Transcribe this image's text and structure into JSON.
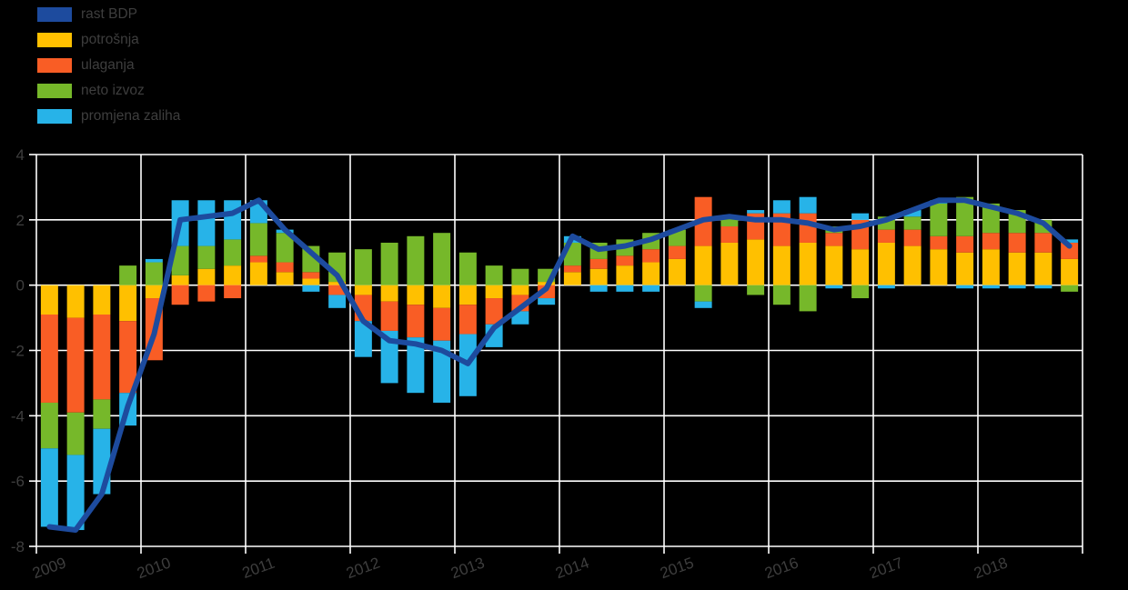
{
  "legend": {
    "items": [
      {
        "label": "rast BDP",
        "color": "#1d4b9e"
      },
      {
        "label": "potrošnja",
        "color": "#ffc000"
      },
      {
        "label": "ulaganja",
        "color": "#f95d25"
      },
      {
        "label": "neto izvoz",
        "color": "#76b82a"
      },
      {
        "label": "promjena zaliha",
        "color": "#27b3e8"
      }
    ]
  },
  "chart_data": {
    "type": "bar",
    "subtype": "stacked-contribution-bars-with-line-overlay",
    "background": "#000000",
    "grid": true,
    "gridline_color": "#ffffff",
    "label_color": "#3e3e3e",
    "legend_position": "top-left",
    "ylim": [
      -8,
      4
    ],
    "y_ticks": [
      4,
      2,
      0,
      -2,
      -4,
      -6,
      -8
    ],
    "x_labels": [
      "2009",
      "2010",
      "2011",
      "2012",
      "2013",
      "2014",
      "2015",
      "2016",
      "2017",
      "2018"
    ],
    "categories": [
      "2009 Q1",
      "2009 Q2",
      "2009 Q3",
      "2009 Q4",
      "2010 Q1",
      "2010 Q2",
      "2010 Q3",
      "2010 Q4",
      "2011 Q1",
      "2011 Q2",
      "2011 Q3",
      "2011 Q4",
      "2012 Q1",
      "2012 Q2",
      "2012 Q3",
      "2012 Q4",
      "2013 Q1",
      "2013 Q2",
      "2013 Q3",
      "2013 Q4",
      "2014 Q1",
      "2014 Q2",
      "2014 Q3",
      "2014 Q4",
      "2015 Q1",
      "2015 Q2",
      "2015 Q3",
      "2015 Q4",
      "2016 Q1",
      "2016 Q2",
      "2016 Q3",
      "2016 Q4",
      "2017 Q1",
      "2017 Q2",
      "2017 Q3",
      "2017 Q4",
      "2018 Q1",
      "2018 Q2",
      "2018 Q3",
      "2018 Q4"
    ],
    "series": [
      {
        "name": "potrošnja",
        "type": "bar",
        "color": "#ffc000",
        "values": [
          -0.9,
          -1.0,
          -0.9,
          -1.1,
          -0.4,
          0.3,
          0.5,
          0.6,
          0.7,
          0.4,
          0.2,
          0.1,
          -0.3,
          -0.5,
          -0.6,
          -0.7,
          -0.6,
          -0.4,
          -0.3,
          0.1,
          0.4,
          0.5,
          0.6,
          0.7,
          0.8,
          1.2,
          1.3,
          1.4,
          1.2,
          1.3,
          1.2,
          1.1,
          1.3,
          1.2,
          1.1,
          1.0,
          1.1,
          1.0,
          1.0,
          0.8
        ]
      },
      {
        "name": "ulaganja",
        "type": "bar",
        "color": "#f95d25",
        "values": [
          -2.7,
          -2.9,
          -2.6,
          -2.2,
          -1.9,
          -0.6,
          -0.5,
          -0.4,
          0.2,
          0.3,
          0.2,
          -0.3,
          -0.8,
          -0.9,
          -1.0,
          -1.0,
          -0.9,
          -0.8,
          -0.5,
          -0.4,
          0.2,
          0.3,
          0.3,
          0.4,
          0.4,
          1.5,
          0.5,
          0.8,
          1.0,
          0.9,
          0.4,
          0.9,
          0.4,
          0.5,
          0.4,
          0.5,
          0.5,
          0.6,
          0.6,
          0.5
        ]
      },
      {
        "name": "neto izvoz",
        "type": "bar",
        "color": "#76b82a",
        "values": [
          -1.4,
          -1.3,
          -0.9,
          0.6,
          0.7,
          0.9,
          0.7,
          0.8,
          1.0,
          0.9,
          0.8,
          0.9,
          1.1,
          1.3,
          1.5,
          1.6,
          1.0,
          0.6,
          0.5,
          0.4,
          0.7,
          0.5,
          0.5,
          0.5,
          0.5,
          -0.5,
          0.3,
          -0.3,
          -0.6,
          -0.8,
          0.2,
          -0.4,
          0.4,
          0.4,
          1.0,
          1.2,
          0.9,
          0.7,
          0.4,
          -0.2
        ]
      },
      {
        "name": "promjena zaliha",
        "type": "bar",
        "color": "#27b3e8",
        "values": [
          -2.4,
          -2.3,
          -2.0,
          -1.0,
          0.1,
          1.4,
          1.4,
          1.2,
          0.7,
          0.1,
          -0.2,
          -0.4,
          -1.1,
          -1.6,
          -1.7,
          -1.9,
          -1.9,
          -0.7,
          -0.4,
          -0.2,
          0.2,
          -0.2,
          -0.2,
          -0.2,
          0.0,
          -0.2,
          0.0,
          0.1,
          0.4,
          0.5,
          -0.1,
          0.2,
          -0.1,
          0.2,
          0.1,
          -0.1,
          -0.1,
          -0.1,
          -0.1,
          0.1
        ]
      },
      {
        "name": "rast BDP",
        "type": "line",
        "color": "#1d4b9e",
        "values": [
          -7.4,
          -7.5,
          -6.4,
          -3.7,
          -1.5,
          2.0,
          2.1,
          2.2,
          2.6,
          1.7,
          1.0,
          0.3,
          -1.1,
          -1.7,
          -1.8,
          -2.0,
          -2.4,
          -1.3,
          -0.7,
          -0.1,
          1.5,
          1.1,
          1.2,
          1.4,
          1.7,
          2.0,
          2.1,
          2.0,
          2.0,
          1.9,
          1.7,
          1.8,
          2.0,
          2.3,
          2.6,
          2.6,
          2.4,
          2.2,
          1.9,
          1.2
        ]
      }
    ]
  }
}
